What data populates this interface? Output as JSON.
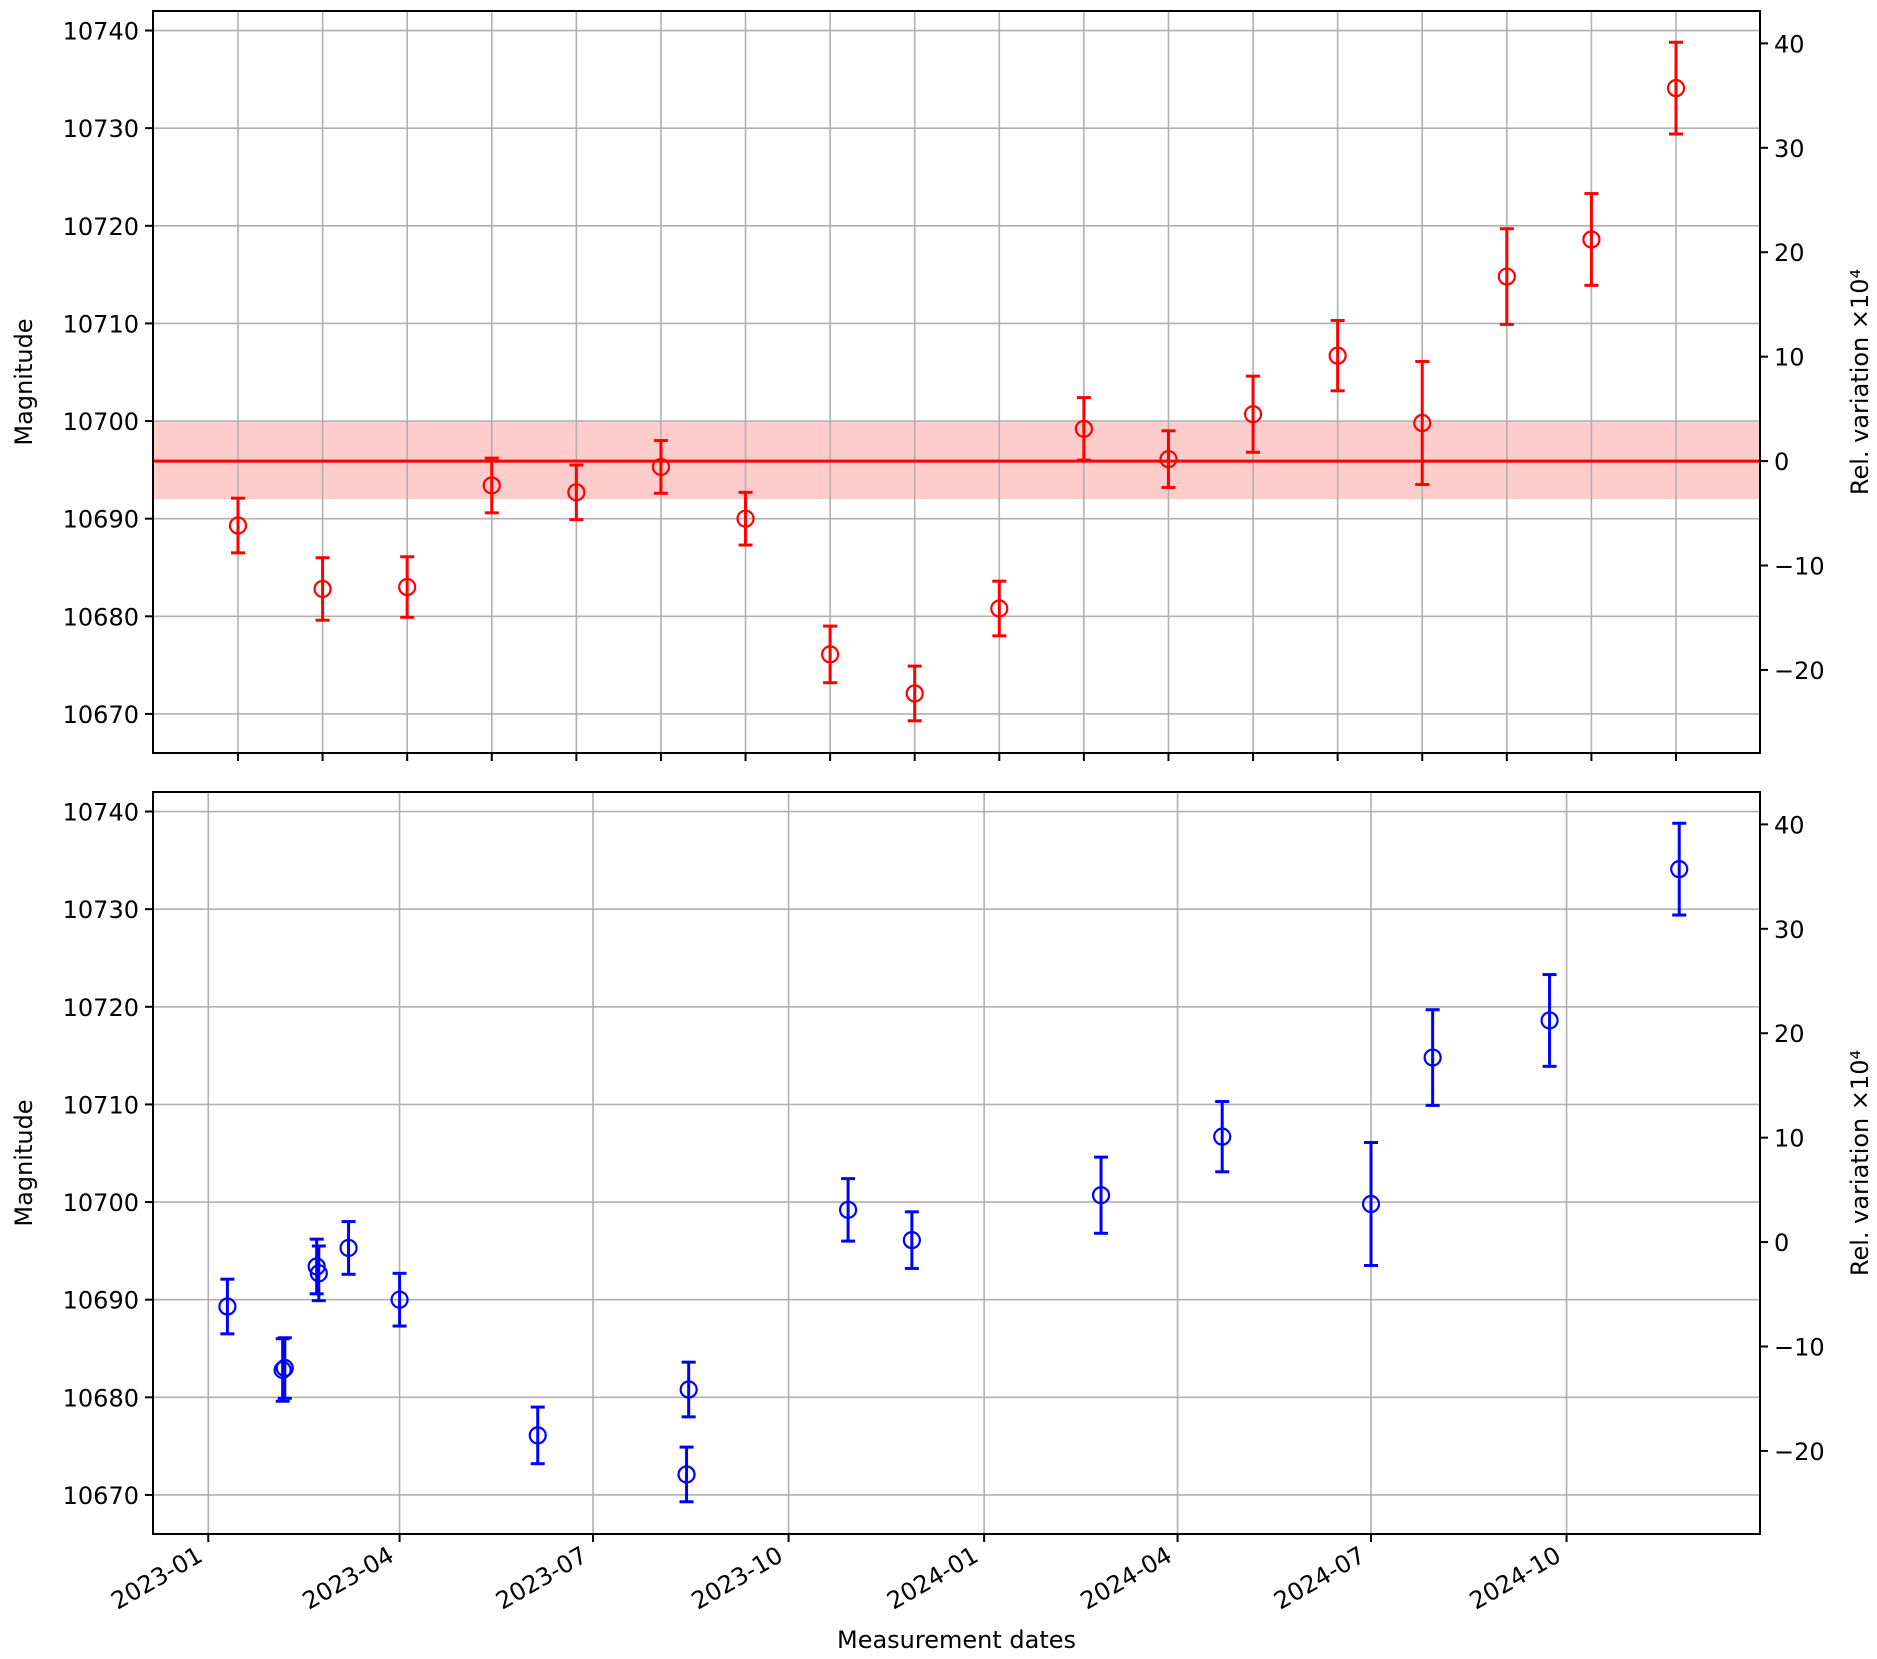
{
  "chart_data": [
    {
      "type": "scatter",
      "xlabel": "",
      "ylabel": "Magnitude",
      "y2label": "Rel. variation ×10⁴",
      "x_axis": "categorical (index), gridlines at each point",
      "ylim": [
        10666,
        10742
      ],
      "yticks": [
        10670,
        10680,
        10690,
        10700,
        10710,
        10720,
        10730,
        10740
      ],
      "y2ticks": [
        "−20",
        "−10",
        "0",
        "10",
        "20",
        "30",
        "40"
      ],
      "y2_values": [
        -20,
        -10,
        0,
        10,
        20,
        30,
        40
      ],
      "reference": {
        "value": 10695.9,
        "band": [
          10692.0,
          10699.9
        ]
      },
      "color": "#ff0000",
      "band_color": "#ffcccc",
      "grid": true,
      "series": [
        {
          "values": [
            10689.3,
            10682.8,
            10683.0,
            10693.4,
            10692.7,
            10695.3,
            10690.0,
            10676.1,
            10672.1,
            10680.8,
            10699.2,
            10696.1,
            10700.7,
            10706.7,
            10699.8,
            10714.8,
            10718.6,
            10734.1
          ],
          "errors": [
            2.8,
            3.2,
            3.1,
            2.8,
            2.8,
            2.7,
            2.7,
            2.9,
            2.8,
            2.8,
            3.2,
            2.9,
            3.9,
            3.6,
            6.3,
            4.9,
            4.7,
            4.7
          ]
        }
      ]
    },
    {
      "type": "scatter",
      "xlabel": "Measurement dates",
      "ylabel": "Magnitude",
      "y2label": "Rel. variation ×10⁴",
      "xlim": [
        "2022-12-06",
        "2024-12-31"
      ],
      "xticks": [
        "2023-01",
        "2023-04",
        "2023-07",
        "2023-10",
        "2024-01",
        "2024-04",
        "2024-07",
        "2024-10"
      ],
      "ylim": [
        10666,
        10742
      ],
      "yticks": [
        10670,
        10680,
        10690,
        10700,
        10710,
        10720,
        10730,
        10740
      ],
      "y2ticks": [
        "−20",
        "−10",
        "0",
        "10",
        "20",
        "30",
        "40"
      ],
      "y2_values": [
        -20,
        -10,
        0,
        10,
        20,
        30,
        40
      ],
      "color": "#0000ff",
      "grid": true,
      "series": [
        {
          "x": [
            "2023-01-10",
            "2023-02-05",
            "2023-02-06",
            "2023-02-21",
            "2023-02-22",
            "2023-03-08",
            "2023-04-01",
            "2023-06-05",
            "2023-08-14",
            "2023-08-15",
            "2023-10-29",
            "2023-11-28",
            "2024-02-25",
            "2024-04-22",
            "2024-07-01",
            "2024-07-30",
            "2024-09-23",
            "2024-11-23"
          ],
          "values": [
            10689.3,
            10682.8,
            10683.0,
            10693.4,
            10692.7,
            10695.3,
            10690.0,
            10676.1,
            10672.1,
            10680.8,
            10699.2,
            10696.1,
            10700.7,
            10706.7,
            10699.8,
            10714.8,
            10718.6,
            10734.1
          ],
          "errors": [
            2.8,
            3.2,
            3.1,
            2.8,
            2.8,
            2.7,
            2.7,
            2.9,
            2.8,
            2.8,
            3.2,
            2.9,
            3.9,
            3.6,
            6.3,
            4.9,
            4.7,
            4.7
          ]
        }
      ]
    }
  ]
}
